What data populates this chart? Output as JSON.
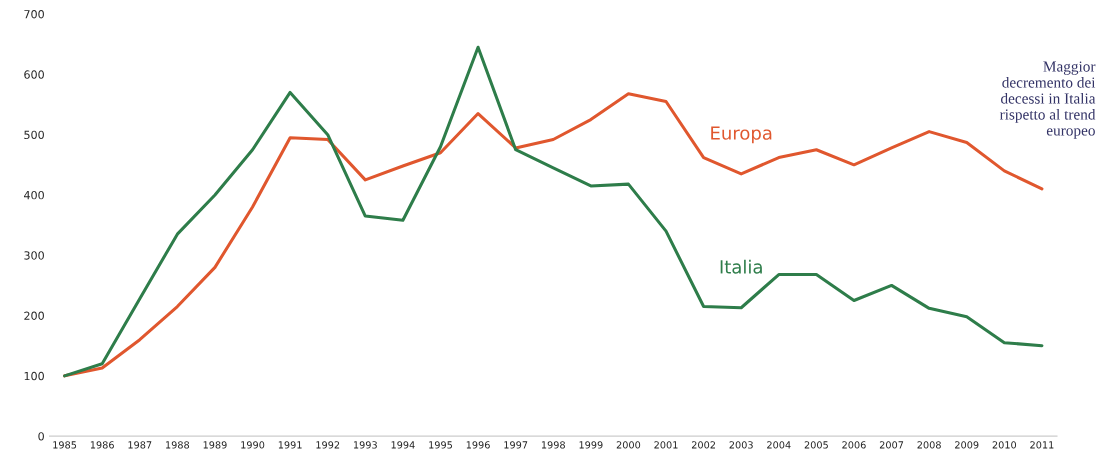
{
  "chart_data": {
    "type": "line",
    "categories": [
      "1985",
      "1986",
      "1987",
      "1988",
      "1989",
      "1990",
      "1991",
      "1992",
      "1993",
      "1994",
      "1995",
      "1996",
      "1997",
      "1998",
      "1999",
      "2000",
      "2001",
      "2002",
      "2003",
      "2004",
      "2005",
      "2006",
      "2007",
      "2008",
      "2009",
      "2010",
      "2011"
    ],
    "series": [
      {
        "name": "Europa",
        "color": "#e0572e",
        "values": [
          100,
          113,
          160,
          215,
          280,
          380,
          495,
          492,
          425,
          448,
          470,
          535,
          478,
          492,
          525,
          568,
          555,
          462,
          435,
          462,
          475,
          450,
          478,
          505,
          487,
          440,
          410
        ]
      },
      {
        "name": "Italia",
        "color": "#2e7d4a",
        "values": [
          100,
          120,
          228,
          335,
          400,
          475,
          570,
          500,
          365,
          358,
          480,
          645,
          475,
          445,
          415,
          418,
          340,
          215,
          213,
          268,
          268,
          225,
          250,
          212,
          198,
          155,
          150
        ]
      }
    ],
    "ylim": [
      0,
      700
    ],
    "yticks": [
      0,
      100,
      200,
      300,
      400,
      500,
      600,
      700
    ],
    "grid": false,
    "legend": false,
    "marker": "none",
    "line_style": "solid",
    "annotations": [
      "Maggior\ndecremento dei\ndecessi in Italia\nrispetto al trend\neuropeo"
    ]
  }
}
